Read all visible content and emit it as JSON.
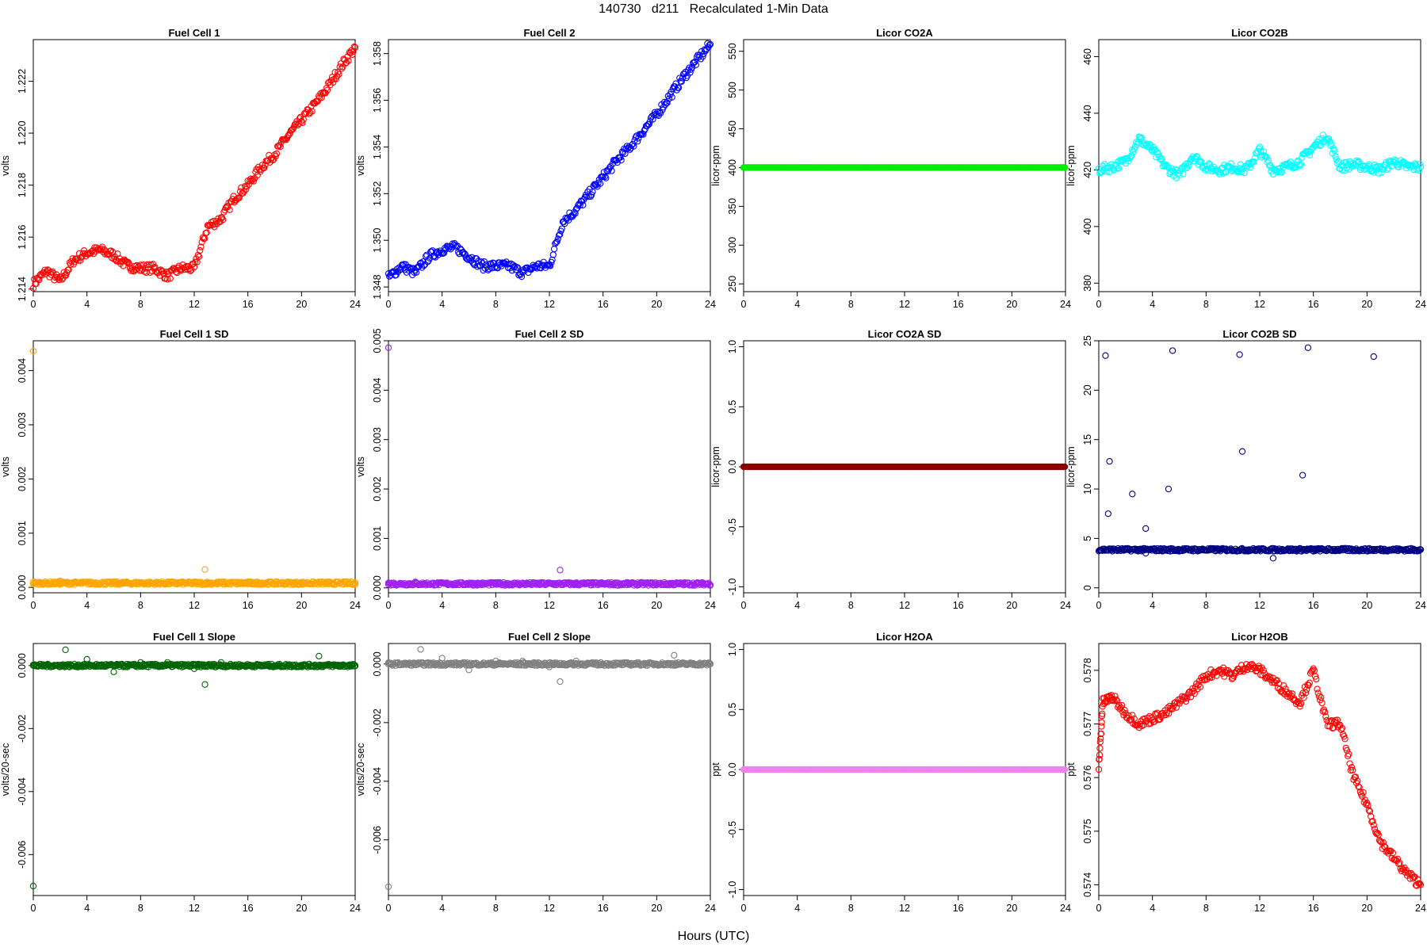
{
  "figure": {
    "title": "140730   d211   Recalculated 1-Min Data",
    "xlabel": "Hours (UTC)"
  },
  "chart_data": [
    {
      "type": "scatter",
      "title": "Fuel Cell 1",
      "ylabel": "volts",
      "color": "#ff0000",
      "xlim": [
        0,
        24
      ],
      "ylim": [
        1.2139,
        1.2236
      ],
      "xticks": [
        0,
        4,
        8,
        12,
        16,
        20,
        24
      ],
      "yticks": [
        1.214,
        1.216,
        1.218,
        1.22,
        1.222
      ],
      "ytick_labels": [
        "1.214",
        "1.216",
        "1.218",
        "1.220",
        "1.222"
      ],
      "x": [
        0,
        1,
        2,
        3,
        4,
        5,
        6,
        7,
        8,
        9,
        10,
        11,
        12,
        13,
        14,
        15,
        16,
        17,
        18,
        19,
        20,
        21,
        22,
        23,
        24
      ],
      "y": [
        1.2142,
        1.2147,
        1.2143,
        1.2151,
        1.2154,
        1.2155,
        1.2153,
        1.2149,
        1.2148,
        1.2148,
        1.2145,
        1.2148,
        1.2148,
        1.2164,
        1.2167,
        1.2175,
        1.218,
        1.2187,
        1.2192,
        1.2199,
        1.2205,
        1.2211,
        1.2218,
        1.2226,
        1.2233
      ]
    },
    {
      "type": "scatter",
      "title": "Fuel Cell 2",
      "ylabel": "volts",
      "color": "#0000ff",
      "xlim": [
        0,
        24
      ],
      "ylim": [
        1.3478,
        1.3586
      ],
      "xticks": [
        0,
        4,
        8,
        12,
        16,
        20,
        24
      ],
      "yticks": [
        1.348,
        1.35,
        1.352,
        1.354,
        1.356,
        1.358
      ],
      "ytick_labels": [
        "1.348",
        "1.350",
        "1.352",
        "1.354",
        "1.356",
        "1.358"
      ],
      "x": [
        0,
        1,
        2,
        3,
        4,
        5,
        6,
        7,
        8,
        9,
        10,
        11,
        12,
        13,
        14,
        15,
        16,
        17,
        18,
        19,
        20,
        21,
        22,
        23,
        24
      ],
      "y": [
        1.3484,
        1.3489,
        1.3486,
        1.3493,
        1.3496,
        1.3497,
        1.3493,
        1.3489,
        1.3489,
        1.3489,
        1.3486,
        1.3489,
        1.3489,
        1.3508,
        1.3513,
        1.352,
        1.3527,
        1.3534,
        1.354,
        1.3547,
        1.3554,
        1.3562,
        1.357,
        1.3577,
        1.3584
      ]
    },
    {
      "type": "scatter",
      "title": "Licor CO2A",
      "ylabel": "licor-ppm",
      "color": "#00ee00",
      "xlim": [
        0,
        24
      ],
      "ylim": [
        240,
        565
      ],
      "xticks": [
        0,
        4,
        8,
        12,
        16,
        20,
        24
      ],
      "yticks": [
        250,
        300,
        350,
        400,
        450,
        500,
        550
      ],
      "ytick_labels": [
        "250",
        "300",
        "350",
        "400",
        "450",
        "500",
        "550"
      ],
      "x": [
        0,
        24
      ],
      "y": [
        400,
        400
      ]
    },
    {
      "type": "scatter",
      "title": "Licor CO2B",
      "ylabel": "licor-ppm",
      "color": "#00ffff",
      "xlim": [
        0,
        24
      ],
      "ylim": [
        377,
        466
      ],
      "xticks": [
        0,
        4,
        8,
        12,
        16,
        20,
        24
      ],
      "yticks": [
        380,
        400,
        420,
        440,
        460
      ],
      "ytick_labels": [
        "380",
        "400",
        "420",
        "440",
        "460"
      ],
      "x": [
        0,
        1,
        2,
        3,
        4,
        5,
        6,
        7,
        8,
        9,
        10,
        11,
        12,
        13,
        14,
        15,
        16,
        17,
        18,
        19,
        20,
        21,
        22,
        23,
        24
      ],
      "y": [
        420,
        421,
        423,
        431,
        427,
        421,
        418,
        425,
        421,
        420,
        421,
        420,
        427,
        420,
        421,
        423,
        428,
        432,
        421,
        422,
        421,
        420,
        423,
        421,
        421
      ]
    },
    {
      "type": "scatter",
      "title": "Fuel Cell 1 SD",
      "ylabel": "volts",
      "color": "#ffa500",
      "xlim": [
        0,
        24
      ],
      "ylim": [
        -0.0001,
        0.00455
      ],
      "xticks": [
        0,
        4,
        8,
        12,
        16,
        20,
        24
      ],
      "yticks": [
        0,
        0.001,
        0.002,
        0.003,
        0.004
      ],
      "ytick_labels": [
        "0.000",
        "0.001",
        "0.002",
        "0.003",
        "0.004"
      ],
      "x": [
        0,
        0,
        2,
        4,
        6,
        8,
        10,
        12,
        12.8,
        14,
        16,
        18,
        20,
        22,
        24
      ],
      "y": [
        0.00436,
        0.0001,
        0.00012,
        0.0001,
        0.0001,
        9e-05,
        0.0001,
        0.0001,
        0.00033,
        9e-05,
        8e-05,
        7e-05,
        7e-05,
        6e-05,
        5e-05
      ]
    },
    {
      "type": "scatter",
      "title": "Fuel Cell 2 SD",
      "ylabel": "volts",
      "color": "#a020f0",
      "xlim": [
        0,
        24
      ],
      "ylim": [
        -0.0001,
        0.005
      ],
      "xticks": [
        0,
        4,
        8,
        12,
        16,
        20,
        24
      ],
      "yticks": [
        0,
        0.001,
        0.002,
        0.003,
        0.004,
        0.005
      ],
      "ytick_labels": [
        "0.000",
        "0.001",
        "0.002",
        "0.003",
        "0.004",
        "0.005"
      ],
      "x": [
        0,
        0,
        2,
        4,
        6,
        8,
        10,
        12,
        12.8,
        14,
        16,
        18,
        20,
        22,
        24
      ],
      "y": [
        0.00486,
        0.0001,
        0.00012,
        0.0001,
        0.0001,
        9e-05,
        0.0001,
        0.0001,
        0.00036,
        9e-05,
        8e-05,
        7e-05,
        7e-05,
        6e-05,
        5e-05
      ]
    },
    {
      "type": "scatter",
      "title": "Licor CO2A SD",
      "ylabel": "licor-ppm",
      "color": "#8b0000",
      "xlim": [
        0,
        24
      ],
      "ylim": [
        -1.05,
        1.05
      ],
      "xticks": [
        0,
        4,
        8,
        12,
        16,
        20,
        24
      ],
      "yticks": [
        -1,
        -0.5,
        0,
        0.5,
        1
      ],
      "ytick_labels": [
        "-1.0",
        "-0.5",
        "0.0",
        "0.5",
        "1.0"
      ],
      "x": [
        0,
        24
      ],
      "y": [
        0,
        0
      ]
    },
    {
      "type": "scatter",
      "title": "Licor CO2B SD",
      "ylabel": "licor-ppm",
      "color": "#000080",
      "xlim": [
        0,
        24
      ],
      "ylim": [
        -0.5,
        25
      ],
      "xticks": [
        0,
        4,
        8,
        12,
        16,
        20,
        24
      ],
      "yticks": [
        0,
        5,
        10,
        15,
        20,
        25
      ],
      "ytick_labels": [
        "0",
        "5",
        "10",
        "15",
        "20",
        "25"
      ],
      "x": [
        0.5,
        0.7,
        0.8,
        2.5,
        3.5,
        5.2,
        5.5,
        10.5,
        10.7,
        15.2,
        15.6,
        20.5,
        3.5,
        13,
        16
      ],
      "y": [
        23.5,
        7.5,
        12.8,
        9.5,
        6,
        10,
        24,
        23.6,
        13.8,
        11.4,
        24.3,
        23.4,
        3.5,
        3,
        3.7
      ]
    },
    {
      "type": "scatter",
      "title": "Fuel Cell 1 Slope",
      "ylabel": "volts/20-sec",
      "color": "#006400",
      "xlim": [
        0,
        24
      ],
      "ylim": [
        -0.0073,
        0.0007
      ],
      "xticks": [
        0,
        4,
        8,
        12,
        16,
        20,
        24
      ],
      "yticks": [
        -0.006,
        -0.004,
        -0.002,
        0
      ],
      "ytick_labels": [
        "-0.006",
        "-0.004",
        "-0.002",
        "0.000"
      ],
      "x": [
        0,
        0,
        2.4,
        4,
        6,
        8,
        10,
        12,
        12.8,
        14,
        16,
        18,
        20,
        21.3,
        24
      ],
      "y": [
        -0.007,
        0,
        0.0005,
        0.0002,
        -0.0002,
        0.0001,
        0.0001,
        -0.0001,
        -0.0006,
        0.0001,
        0,
        0,
        0,
        0.0003,
        0
      ]
    },
    {
      "type": "scatter",
      "title": "Fuel Cell 2 Slope",
      "ylabel": "volts/20-sec",
      "color": "#808080",
      "xlim": [
        0,
        24
      ],
      "ylim": [
        -0.0079,
        0.0007
      ],
      "xticks": [
        0,
        4,
        8,
        12,
        16,
        20,
        24
      ],
      "yticks": [
        -0.006,
        -0.004,
        -0.002,
        0
      ],
      "ytick_labels": [
        "-0.006",
        "-0.004",
        "-0.002",
        "0.000"
      ],
      "x": [
        0,
        0,
        2.4,
        4,
        6,
        8,
        10,
        12,
        12.8,
        14,
        16,
        18,
        20,
        21.3,
        24
      ],
      "y": [
        -0.0076,
        0,
        0.0005,
        0.0002,
        -0.0002,
        0.0001,
        0.0001,
        -0.0001,
        -0.0006,
        0.0001,
        0,
        0,
        0,
        0.0003,
        0
      ]
    },
    {
      "type": "scatter",
      "title": "Licor H2OA",
      "ylabel": "ppt",
      "color": "#ee82ee",
      "xlim": [
        0,
        24
      ],
      "ylim": [
        -1.05,
        1.05
      ],
      "xticks": [
        0,
        4,
        8,
        12,
        16,
        20,
        24
      ],
      "yticks": [
        -1,
        -0.5,
        0,
        0.5,
        1
      ],
      "ytick_labels": [
        "-1.0",
        "-0.5",
        "0.0",
        "0.5",
        "1.0"
      ],
      "x": [
        0,
        24
      ],
      "y": [
        0,
        0
      ]
    },
    {
      "type": "scatter",
      "title": "Licor H2OB",
      "ylabel": "ppt",
      "color": "#ff0000",
      "xlim": [
        0,
        24
      ],
      "ylim": [
        0.5738,
        0.5785
      ],
      "xticks": [
        0,
        4,
        8,
        12,
        16,
        20,
        24
      ],
      "yticks": [
        0.574,
        0.575,
        0.576,
        0.577,
        0.578
      ],
      "ytick_labels": [
        "0.574",
        "0.575",
        "0.576",
        "0.577",
        "0.578"
      ],
      "x": [
        0,
        0.3,
        1,
        2,
        3,
        4,
        5,
        6,
        7,
        8,
        9,
        10,
        11,
        12,
        13,
        14,
        15,
        16,
        17,
        18,
        19,
        20,
        21,
        22,
        23,
        24
      ],
      "y": [
        0.5762,
        0.5774,
        0.5775,
        0.5772,
        0.577,
        0.5771,
        0.5772,
        0.5774,
        0.5776,
        0.5779,
        0.578,
        0.5779,
        0.5781,
        0.578,
        0.5778,
        0.5776,
        0.5774,
        0.578,
        0.577,
        0.577,
        0.576,
        0.5755,
        0.5748,
        0.5745,
        0.5742,
        0.574
      ]
    }
  ]
}
